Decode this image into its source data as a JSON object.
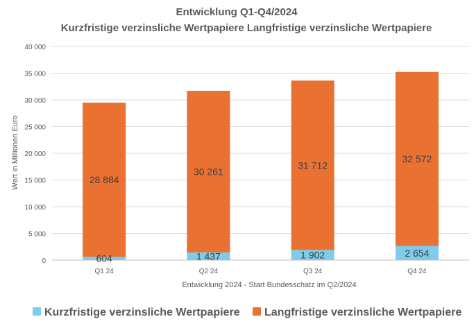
{
  "chart_data": {
    "type": "bar",
    "stacked": true,
    "title": "Entwicklung Q1-Q4/2024",
    "subtitle": "Kurzfristige verzinsliche Wertpapiere Langfristige verzinsliche Wertpapiere",
    "xlabel": "Entwicklung 2024 - Start Bundesschatz im Q2/2024",
    "ylabel": "Wert in Millionen Euro",
    "categories": [
      "Q1 24",
      "Q2 24",
      "Q3 24",
      "Q4 24"
    ],
    "ylim": [
      0,
      40000
    ],
    "yticks": [
      0,
      5000,
      10000,
      15000,
      20000,
      25000,
      30000,
      35000,
      40000
    ],
    "ytick_labels": [
      "0",
      "5 000",
      "10 000",
      "15 000",
      "20 000",
      "25 000",
      "30 000",
      "35 000",
      "40 000"
    ],
    "series": [
      {
        "name": "Kurzfristige verzinsliche Wertpapiere",
        "color": "#7ECBEB",
        "values": [
          604,
          1437,
          1902,
          2654
        ],
        "labels": [
          "604",
          "1 437",
          "1 902",
          "2 654"
        ]
      },
      {
        "name": "Langfristige verzinsliche Wertpapiere",
        "color": "#E97132",
        "values": [
          28884,
          30261,
          31712,
          32572
        ],
        "labels": [
          "28 884",
          "30 261",
          "31 712",
          "32 572"
        ]
      }
    ],
    "grid": true,
    "legend_position": "bottom"
  }
}
